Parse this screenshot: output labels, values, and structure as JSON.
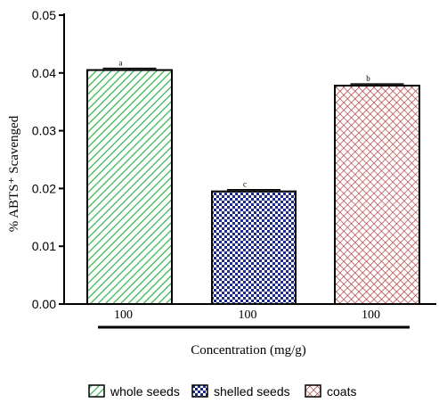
{
  "chart_data": {
    "type": "bar",
    "categories": [
      "100",
      "100",
      "100"
    ],
    "series": [
      {
        "name": "whole seeds",
        "value": 0.0405,
        "error": 0.0003,
        "significance": "a",
        "color": "#2fb34a",
        "pattern": "diagonal-lines"
      },
      {
        "name": "shelled seeds",
        "value": 0.0195,
        "error": 0.0003,
        "significance": "c",
        "color": "#1c2a8a",
        "pattern": "checkerboard"
      },
      {
        "name": "coats",
        "value": 0.0378,
        "error": 0.0003,
        "significance": "b",
        "color": "#b03030",
        "pattern": "crosshatch"
      }
    ],
    "yticks": [
      "0.00",
      "0.01",
      "0.02",
      "0.03",
      "0.04",
      "0.05"
    ],
    "ylim": [
      0,
      0.05
    ],
    "xlabel": "Concentration (mg/g)",
    "ylabel": "% ABTS⁺ Scavenged",
    "grid": false,
    "legend_position": "bottom"
  }
}
